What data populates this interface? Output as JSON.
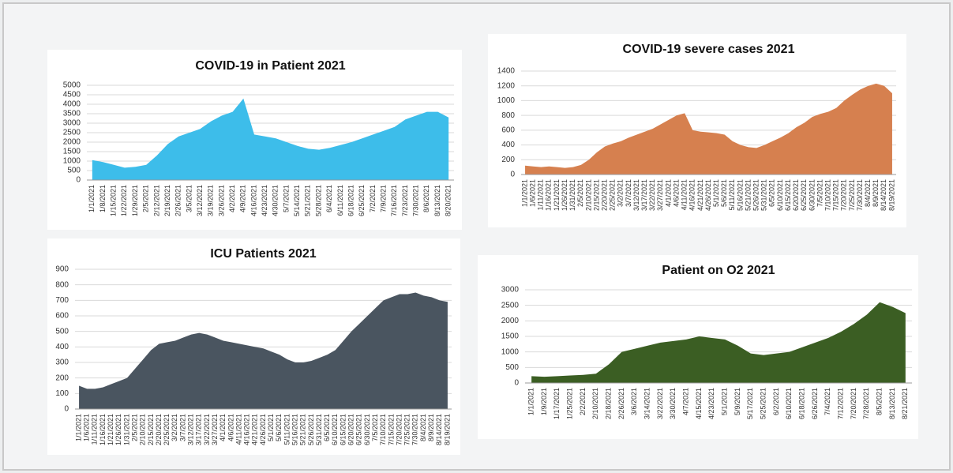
{
  "chart_data": [
    {
      "type": "area",
      "title": "COVID-19 in Patient 2021",
      "color": "#3dbdea",
      "grid": true,
      "ylim": [
        0,
        5000
      ],
      "yticks": [
        0,
        500,
        1000,
        1500,
        2000,
        2500,
        3000,
        3500,
        4000,
        4500,
        5000
      ],
      "categories": [
        "1/1/2021",
        "1/8/2021",
        "1/15/2021",
        "1/22/2021",
        "1/29/2021",
        "2/5/2021",
        "2/12/2021",
        "2/19/2021",
        "2/26/2021",
        "3/5/2021",
        "3/12/2021",
        "3/19/2021",
        "3/26/2021",
        "4/2/2021",
        "4/9/2021",
        "4/16/2021",
        "4/23/2021",
        "4/30/2021",
        "5/7/2021",
        "5/14/2021",
        "5/21/2021",
        "5/28/2021",
        "6/4/2021",
        "6/11/2021",
        "6/18/2021",
        "6/25/2021",
        "7/2/2021",
        "7/9/2021",
        "7/16/2021",
        "7/23/2021",
        "7/30/2021",
        "8/6/2021",
        "8/13/2021",
        "8/20/2021"
      ],
      "values": [
        1050,
        950,
        800,
        650,
        700,
        800,
        1300,
        1900,
        2300,
        2500,
        2700,
        3100,
        3400,
        3600,
        4300,
        2400,
        2300,
        2200,
        2000,
        1800,
        1650,
        1600,
        1700,
        1850,
        2000,
        2200,
        2400,
        2600,
        2800,
        3200,
        3400,
        3600,
        3600,
        3300
      ]
    },
    {
      "type": "area",
      "title": "COVID-19  severe cases 2021",
      "color": "#d6804f",
      "grid": true,
      "ylim": [
        0,
        1400
      ],
      "yticks": [
        0,
        200,
        400,
        600,
        800,
        1000,
        1200,
        1400
      ],
      "categories": [
        "1/1/2021",
        "1/6/2021",
        "1/11/2021",
        "1/16/2021",
        "1/21/2021",
        "1/26/2021",
        "1/31/2021",
        "2/5/2021",
        "2/10/2021",
        "2/15/2021",
        "2/20/2021",
        "2/25/2021",
        "3/2/2021",
        "3/7/2021",
        "3/12/2021",
        "3/17/2021",
        "3/22/2021",
        "3/27/2021",
        "4/1/2021",
        "4/6/2021",
        "4/11/2021",
        "4/16/2021",
        "4/21/2021",
        "4/26/2021",
        "5/1/2021",
        "5/6/2021",
        "5/11/2021",
        "5/16/2021",
        "5/21/2021",
        "5/26/2021",
        "5/31/2021",
        "6/5/2021",
        "6/10/2021",
        "6/15/2021",
        "6/20/2021",
        "6/25/2021",
        "6/30/2021",
        "7/5/2021",
        "7/10/2021",
        "7/15/2021",
        "7/20/2021",
        "7/25/2021",
        "7/30/2021",
        "8/4/2021",
        "8/9/2021",
        "8/14/2021",
        "8/19/2021"
      ],
      "values": [
        120,
        110,
        100,
        110,
        100,
        90,
        100,
        130,
        200,
        300,
        380,
        420,
        450,
        500,
        540,
        580,
        620,
        680,
        740,
        800,
        830,
        600,
        580,
        570,
        560,
        540,
        450,
        400,
        370,
        360,
        400,
        450,
        500,
        560,
        640,
        700,
        780,
        820,
        850,
        900,
        1000,
        1080,
        1150,
        1200,
        1230,
        1200,
        1100
      ]
    },
    {
      "type": "area",
      "title": "ICU Patients 2021",
      "color": "#4a5560",
      "grid": true,
      "ylim": [
        0,
        900
      ],
      "yticks": [
        0,
        100,
        200,
        300,
        400,
        500,
        600,
        700,
        800,
        900
      ],
      "categories": [
        "1/1/2021",
        "1/6/2021",
        "1/11/2021",
        "1/16/2021",
        "1/21/2021",
        "1/26/2021",
        "1/31/2021",
        "2/5/2021",
        "2/10/2021",
        "2/15/2021",
        "2/20/2021",
        "2/25/2021",
        "3/2/2021",
        "3/7/2021",
        "3/12/2021",
        "3/17/2021",
        "3/22/2021",
        "3/27/2021",
        "4/1/2021",
        "4/6/2021",
        "4/11/2021",
        "4/16/2021",
        "4/21/2021",
        "4/26/2021",
        "5/1/2021",
        "5/6/2021",
        "5/11/2021",
        "5/16/2021",
        "5/21/2021",
        "5/26/2021",
        "5/31/2021",
        "6/5/2021",
        "6/10/2021",
        "6/15/2021",
        "6/20/2021",
        "6/25/2021",
        "6/30/2021",
        "7/5/2021",
        "7/10/2021",
        "7/15/2021",
        "7/20/2021",
        "7/25/2021",
        "7/30/2021",
        "8/4/2021",
        "8/9/2021",
        "8/14/2021",
        "8/19/2021"
      ],
      "values": [
        150,
        130,
        130,
        140,
        160,
        180,
        200,
        260,
        320,
        380,
        420,
        430,
        440,
        460,
        480,
        490,
        480,
        460,
        440,
        430,
        420,
        410,
        400,
        390,
        370,
        350,
        320,
        300,
        300,
        310,
        330,
        350,
        380,
        440,
        500,
        550,
        600,
        650,
        700,
        720,
        740,
        740,
        750,
        730,
        720,
        700,
        690
      ]
    },
    {
      "type": "area",
      "title": "Patient on O2 2021",
      "color": "#3b5e23",
      "grid": true,
      "ylim": [
        0,
        3000
      ],
      "yticks": [
        0,
        500,
        1000,
        1500,
        2000,
        2500,
        3000
      ],
      "categories": [
        "1/1/2021",
        "1/9/2021",
        "1/17/2021",
        "1/25/2021",
        "2/2/2021",
        "2/10/2021",
        "2/18/2021",
        "2/26/2021",
        "3/6/2021",
        "3/14/2021",
        "3/22/2021",
        "3/30/2021",
        "4/7/2021",
        "4/15/2021",
        "4/23/2021",
        "5/1/2021",
        "5/9/2021",
        "5/17/2021",
        "5/25/2021",
        "6/2/2021",
        "6/10/2021",
        "6/18/2021",
        "6/26/2021",
        "7/4/2021",
        "7/12/2021",
        "7/20/2021",
        "7/28/2021",
        "8/5/2021",
        "8/13/2021",
        "8/21/2021"
      ],
      "values": [
        220,
        200,
        220,
        240,
        260,
        300,
        600,
        1000,
        1100,
        1200,
        1300,
        1350,
        1400,
        1500,
        1450,
        1400,
        1200,
        950,
        900,
        950,
        1000,
        1150,
        1300,
        1450,
        1650,
        1900,
        2200,
        2600,
        2450,
        2250
      ]
    }
  ]
}
